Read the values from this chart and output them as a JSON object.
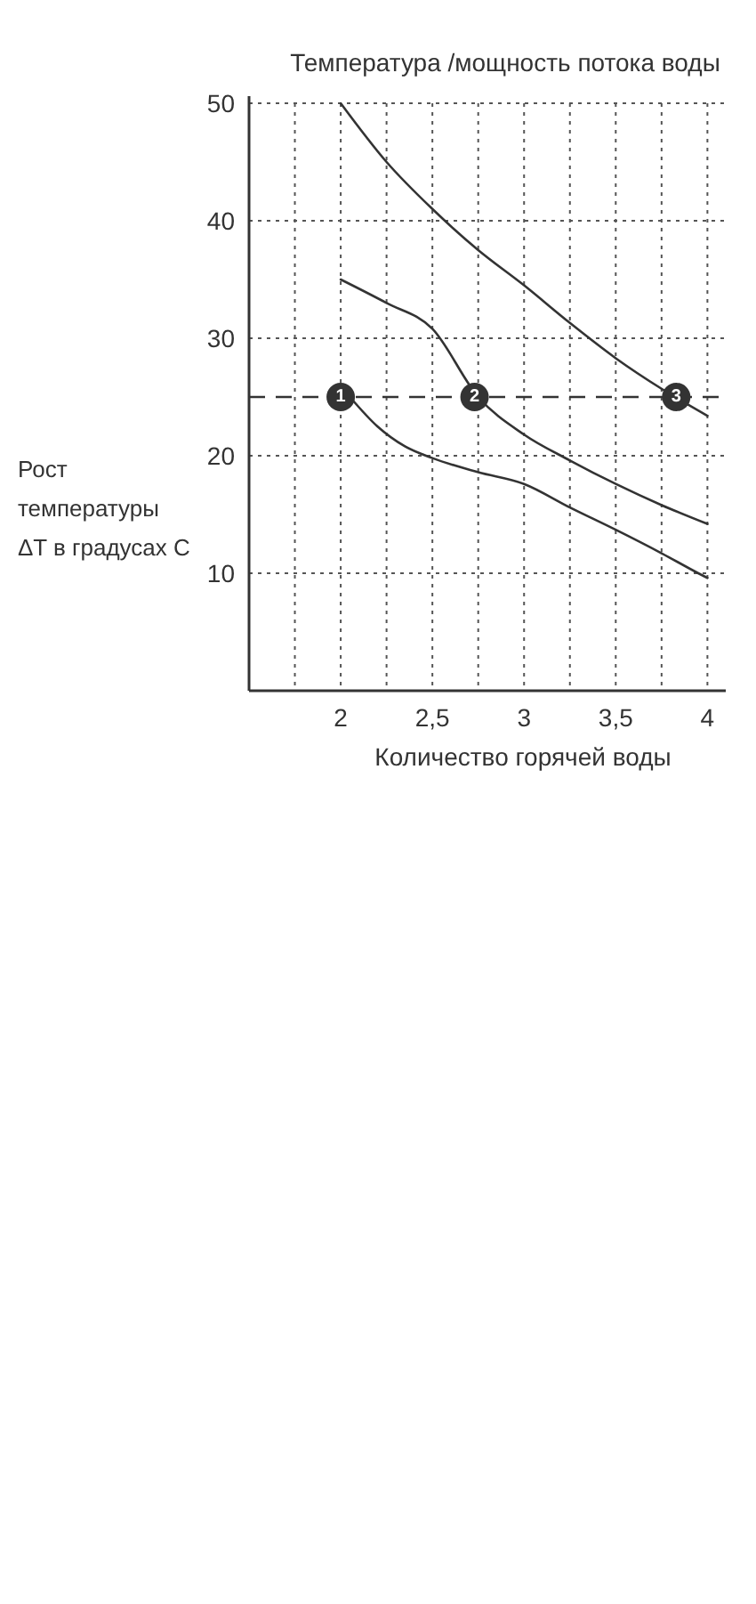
{
  "chart_data": {
    "type": "line",
    "title": "Температура /мощность потока воды",
    "xlabel": "Количество горячей воды",
    "ylabel": "Рост\nтемпературы\nΔT в градусах С",
    "xlim": [
      1.5,
      4.1
    ],
    "ylim": [
      0,
      50
    ],
    "xticks": [
      {
        "value": 1.75,
        "label": null
      },
      2,
      {
        "value": 2.25,
        "label": null
      },
      {
        "value": 2.5,
        "label": "2,5"
      },
      {
        "value": 2.75,
        "label": null
      },
      3,
      {
        "value": 3.25,
        "label": null
      },
      {
        "value": 3.5,
        "label": "3,5"
      },
      {
        "value": 3.75,
        "label": null
      },
      4
    ],
    "yticks": [
      10,
      20,
      30,
      40,
      50
    ],
    "grid": true,
    "line_style": "solid",
    "ref_lines": [
      {
        "axis": "y",
        "value": 25,
        "label": null,
        "line_style": "dashed",
        "color": "#333333"
      }
    ],
    "annotations": [
      {
        "text": "1",
        "x": 2,
        "y": 25
      },
      {
        "text": "2",
        "x": 2.73,
        "y": 25
      },
      {
        "text": "3",
        "x": 3.83,
        "y": 25
      }
    ],
    "series": [
      {
        "color": "#333333",
        "x": [
          2,
          2.25,
          2.5,
          2.75,
          3,
          3.25,
          3.5,
          3.75,
          4
        ],
        "values": [
          50,
          45,
          41,
          37.5,
          34.5,
          31.3,
          28.3,
          25.7,
          23.4
        ]
      },
      {
        "color": "#333333",
        "x": [
          2,
          2.25,
          2.5,
          2.75,
          3,
          3.25,
          3.5,
          3.75,
          4
        ],
        "values": [
          35,
          33,
          30.8,
          25,
          21.8,
          19.6,
          17.6,
          15.8,
          14.2
        ]
      },
      {
        "color": "#333333",
        "x": [
          2.05,
          2.2,
          2.35,
          2.5,
          2.75,
          3,
          3.25,
          3.5,
          3.75,
          3.95,
          4
        ],
        "values": [
          25,
          22.5,
          20.8,
          19.8,
          18.6,
          17.6,
          15.6,
          13.7,
          11.7,
          10,
          9.6
        ]
      },
      {
        "type": "scatter",
        "marker": "circle",
        "color": "#333333",
        "x": [
          2,
          2.73,
          3.83
        ],
        "values": [
          25,
          25,
          25
        ]
      }
    ]
  }
}
